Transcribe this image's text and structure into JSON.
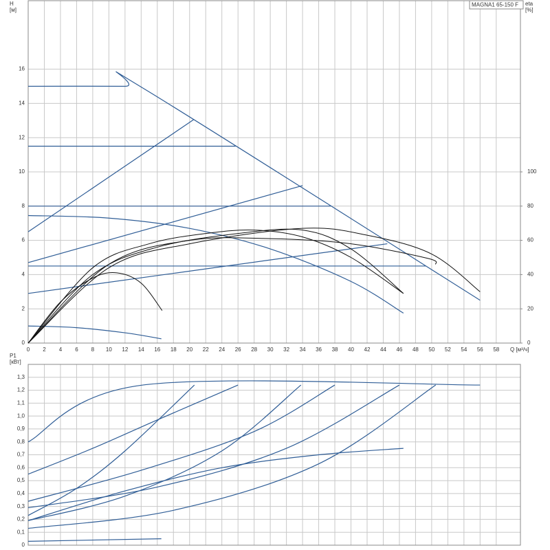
{
  "chart_data": [
    {
      "type": "line",
      "title": "MAGNA1 65-150 F",
      "ylabel": [
        "H",
        "[м]"
      ],
      "y2label": [
        "eta",
        "[%]"
      ],
      "xlabel": "Q [м³/ч]",
      "xlim": [
        0,
        61
      ],
      "ylim": [
        0,
        20
      ],
      "y2lim": [
        0,
        200
      ],
      "xticks": [
        0,
        2,
        4,
        6,
        8,
        10,
        12,
        14,
        16,
        18,
        20,
        22,
        24,
        26,
        28,
        30,
        32,
        34,
        36,
        38,
        40,
        42,
        44,
        46,
        48,
        50,
        52,
        54,
        56,
        58
      ],
      "yticks": [
        0,
        2,
        4,
        6,
        8,
        10,
        12,
        14,
        16
      ],
      "y2ticks": [
        0,
        20,
        40,
        60,
        80,
        100
      ],
      "grid": true,
      "series": [
        {
          "color": "#2f5d96",
          "x": [
            0,
            12,
            14.2,
            56
          ],
          "values": [
            15,
            15,
            14.9,
            2.5
          ]
        },
        {
          "color": "#2f5d96",
          "x": [
            0,
            25.7
          ],
          "values": [
            11.5,
            11.5
          ]
        },
        {
          "color": "#2f5d96",
          "x": [
            0,
            37.5
          ],
          "values": [
            8,
            8
          ]
        },
        {
          "color": "#2f5d96",
          "x": [
            0,
            49.3
          ],
          "values": [
            4.5,
            4.5
          ]
        },
        {
          "color": "#2f5d96",
          "x": [
            0,
            20.5
          ],
          "values": [
            6.5,
            13.05
          ]
        },
        {
          "color": "#2f5d96",
          "x": [
            0,
            34
          ],
          "values": [
            4.7,
            9.2
          ]
        },
        {
          "color": "#2f5d96",
          "x": [
            0,
            44.5
          ],
          "values": [
            2.9,
            5.8
          ]
        },
        {
          "color": "#2f5d96",
          "x": [
            0,
            10,
            20,
            30,
            40,
            46.5
          ],
          "values": [
            7.45,
            7.3,
            6.7,
            5.5,
            3.6,
            1.75
          ]
        },
        {
          "color": "#2f5d96",
          "x": [
            0,
            6,
            12,
            16.5
          ],
          "values": [
            1,
            0.9,
            0.6,
            0.25
          ]
        },
        {
          "color": "#111111",
          "axis": "y2",
          "x": [
            0,
            4,
            8,
            11,
            14,
            16.6
          ],
          "values": [
            0,
            24,
            38,
            41,
            35,
            19
          ]
        },
        {
          "color": "#111111",
          "axis": "y2",
          "x": [
            0,
            8,
            15,
            22,
            28,
            34,
            40,
            46.5
          ],
          "values": [
            0,
            44,
            58,
            64,
            66,
            62,
            50,
            29
          ]
        },
        {
          "color": "#111111",
          "axis": "y2",
          "x": [
            0,
            8,
            16,
            26,
            34,
            40,
            46.5
          ],
          "values": [
            0,
            40,
            56,
            64,
            66,
            55,
            29
          ]
        },
        {
          "color": "#111111",
          "axis": "y2",
          "x": [
            0,
            10,
            20,
            30,
            40,
            49.5,
            50.5
          ],
          "values": [
            0,
            46,
            60,
            61,
            58,
            49.5,
            46
          ]
        },
        {
          "color": "#111111",
          "axis": "y2",
          "x": [
            0,
            10,
            20,
            34,
            42,
            50,
            56
          ],
          "values": [
            0,
            44,
            58,
            67,
            63,
            52,
            30
          ]
        }
      ]
    },
    {
      "type": "line",
      "ylabel": [
        "P1",
        "[кВт]"
      ],
      "xlim": [
        0,
        61
      ],
      "ylim": [
        0,
        1.4
      ],
      "xticks": [
        0,
        2,
        4,
        6,
        8,
        10,
        12,
        14,
        16,
        18,
        20,
        22,
        24,
        26,
        28,
        30,
        32,
        34,
        36,
        38,
        40,
        42,
        44,
        46,
        48,
        50,
        52,
        54,
        56,
        58
      ],
      "xtick_labels": false,
      "yticks": [
        0,
        {
          "value": 0.1,
          "label": "0,1"
        },
        {
          "value": 0.2,
          "label": "0,2"
        },
        {
          "value": 0.3,
          "label": "0,3"
        },
        {
          "value": 0.4,
          "label": "0,4"
        },
        {
          "value": 0.5,
          "label": "0,5"
        },
        {
          "value": 0.6,
          "label": "0,6"
        },
        {
          "value": 0.7,
          "label": "0,7"
        },
        {
          "value": 0.8,
          "label": "0,8"
        },
        {
          "value": 0.9,
          "label": "0,9"
        },
        {
          "value": 1.0,
          "label": "1,0"
        },
        {
          "value": 1.1,
          "label": "1,1"
        },
        {
          "value": 1.2,
          "label": "1,2"
        },
        {
          "value": 1.3,
          "label": "1,3"
        }
      ],
      "grid": true,
      "series": [
        {
          "color": "#2f5d96",
          "x": [
            0,
            14.2,
            56
          ],
          "values": [
            0.8,
            1.24,
            1.24
          ]
        },
        {
          "color": "#2f5d96",
          "x": [
            0,
            8,
            16,
            26
          ],
          "values": [
            0.55,
            0.75,
            0.97,
            1.24
          ]
        },
        {
          "color": "#2f5d96",
          "x": [
            0,
            6,
            12,
            20.6
          ],
          "values": [
            0.23,
            0.44,
            0.73,
            1.24
          ]
        },
        {
          "color": "#2f5d96",
          "x": [
            0,
            12,
            24,
            33.8
          ],
          "values": [
            0.19,
            0.38,
            0.73,
            1.24
          ]
        },
        {
          "color": "#2f5d96",
          "x": [
            0,
            14,
            28,
            38
          ],
          "values": [
            0.34,
            0.58,
            0.88,
            1.24
          ]
        },
        {
          "color": "#2f5d96",
          "x": [
            0,
            16,
            32,
            46
          ],
          "values": [
            0.29,
            0.45,
            0.75,
            1.24
          ]
        },
        {
          "color": "#2f5d96",
          "x": [
            0,
            18,
            36,
            50.5
          ],
          "values": [
            0.13,
            0.27,
            0.63,
            1.24
          ]
        },
        {
          "color": "#2f5d96",
          "x": [
            0,
            12,
            24,
            36,
            46.5
          ],
          "values": [
            0.19,
            0.42,
            0.6,
            0.7,
            0.75
          ]
        },
        {
          "color": "#2f5d96",
          "x": [
            0,
            16.5
          ],
          "values": [
            0.03,
            0.05
          ]
        }
      ]
    }
  ]
}
